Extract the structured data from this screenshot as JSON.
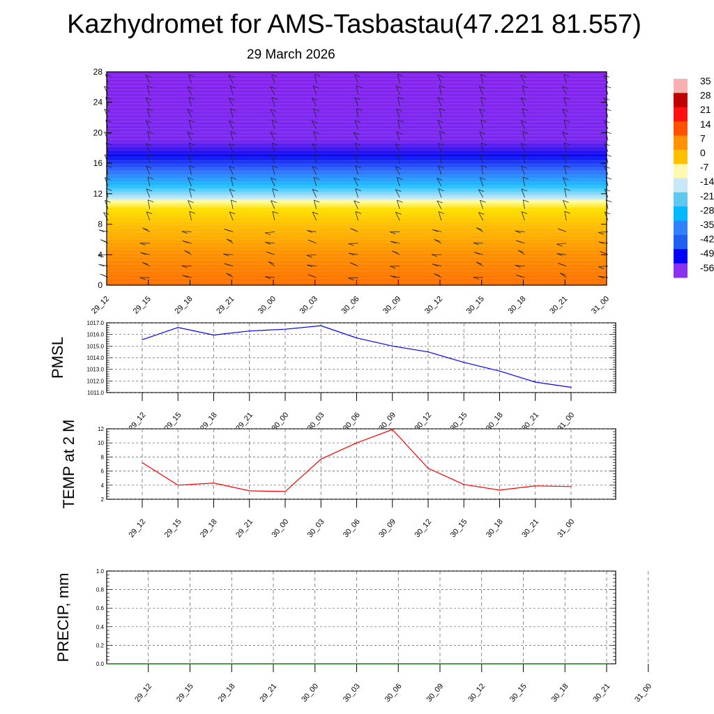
{
  "title": "Kazhydromet for AMS-Tasbastau(47.221 81.557)",
  "subtitle": "29 March 2026",
  "time_labels": [
    "29_12",
    "29_15",
    "29_18",
    "29_21",
    "30_00",
    "30_03",
    "30_06",
    "30_09",
    "30_12",
    "30_15",
    "30_18",
    "30_21",
    "31_00"
  ],
  "chart_data": [
    {
      "type": "heatmap",
      "name": "temperature-wind-profile",
      "x": [
        "29_12",
        "29_15",
        "29_18",
        "29_21",
        "30_00",
        "30_03",
        "30_06",
        "30_09",
        "30_12",
        "30_15",
        "30_18",
        "30_21",
        "31_00"
      ],
      "yticks": [
        0,
        4,
        8,
        12,
        16,
        20,
        24,
        28
      ],
      "ylim": [
        0,
        28
      ],
      "colorbar": {
        "labels": [
          "35",
          "28",
          "21",
          "14",
          "7",
          "0",
          "-7",
          "-14",
          "-21",
          "-28",
          "-35",
          "-42",
          "-49",
          "-56"
        ],
        "colors": [
          "#f8b0b0",
          "#c00000",
          "#ff1010",
          "#ff5000",
          "#ff9000",
          "#ffc000",
          "#fff8b0",
          "#c8e8f8",
          "#60c8f0",
          "#00b8ff",
          "#3080ff",
          "#2060f0",
          "#0000ff",
          "#8a30f0"
        ]
      },
      "profile_colors": [
        {
          "level": 0,
          "color": "#ff7000"
        },
        {
          "level": 4,
          "color": "#ff9000"
        },
        {
          "level": 8,
          "color": "#ffc000"
        },
        {
          "level": 10,
          "color": "#ffe000"
        },
        {
          "level": 11,
          "color": "#ffffa0"
        },
        {
          "level": 11.4,
          "color": "#c8e8f8"
        },
        {
          "level": 13,
          "color": "#20c0ff"
        },
        {
          "level": 15,
          "color": "#3070ff"
        },
        {
          "level": 17,
          "color": "#0a0af0"
        },
        {
          "level": 19,
          "color": "#7a28f0"
        },
        {
          "level": 28,
          "color": "#8624ee"
        }
      ]
    },
    {
      "type": "line",
      "name": "pmsl",
      "ylabel": "PMSL",
      "x": [
        "29_12",
        "29_15",
        "29_18",
        "29_21",
        "30_00",
        "30_03",
        "30_06",
        "30_09",
        "30_12",
        "30_15",
        "30_18",
        "30_21",
        "31_00"
      ],
      "values": [
        1015.55,
        1016.6,
        1015.95,
        1016.3,
        1016.45,
        1016.75,
        1015.7,
        1015.0,
        1014.5,
        1013.6,
        1012.85,
        1011.9,
        1011.45
      ],
      "ylim": [
        1011.0,
        1017.0
      ],
      "yticks": [
        "1011.0",
        "1012.0",
        "1013.0",
        "1014.0",
        "1015.0",
        "1016.0",
        "1017.0"
      ],
      "color": "#0000ff"
    },
    {
      "type": "line",
      "name": "temp",
      "ylabel": "TEMP at 2 M",
      "x": [
        "29_12",
        "29_15",
        "29_18",
        "29_21",
        "30_00",
        "30_03",
        "30_06",
        "30_09",
        "30_12",
        "30_15",
        "30_18",
        "30_21",
        "31_00"
      ],
      "values": [
        7.2,
        4.0,
        4.3,
        3.2,
        3.1,
        7.7,
        10.0,
        11.9,
        6.4,
        4.1,
        3.3,
        3.9,
        3.8
      ],
      "ylim": [
        2,
        12
      ],
      "yticks": [
        "2",
        "4",
        "6",
        "8",
        "10",
        "12"
      ],
      "color": "#ff0000"
    },
    {
      "type": "line",
      "name": "precip",
      "ylabel": "PRECIP, mm",
      "x": [
        "29_12",
        "29_15",
        "29_18",
        "29_21",
        "30_00",
        "30_03",
        "30_06",
        "30_09",
        "30_12",
        "30_15",
        "30_18",
        "30_21",
        "31_00"
      ],
      "values": [
        0,
        0,
        0,
        0,
        0,
        0,
        0,
        0,
        0,
        0,
        0,
        0,
        0
      ],
      "ylim": [
        0,
        1
      ],
      "yticks": [
        "0.0",
        "0.2",
        "0.4",
        "0.6",
        "0.8",
        "1.0"
      ],
      "color": "#008000"
    }
  ]
}
